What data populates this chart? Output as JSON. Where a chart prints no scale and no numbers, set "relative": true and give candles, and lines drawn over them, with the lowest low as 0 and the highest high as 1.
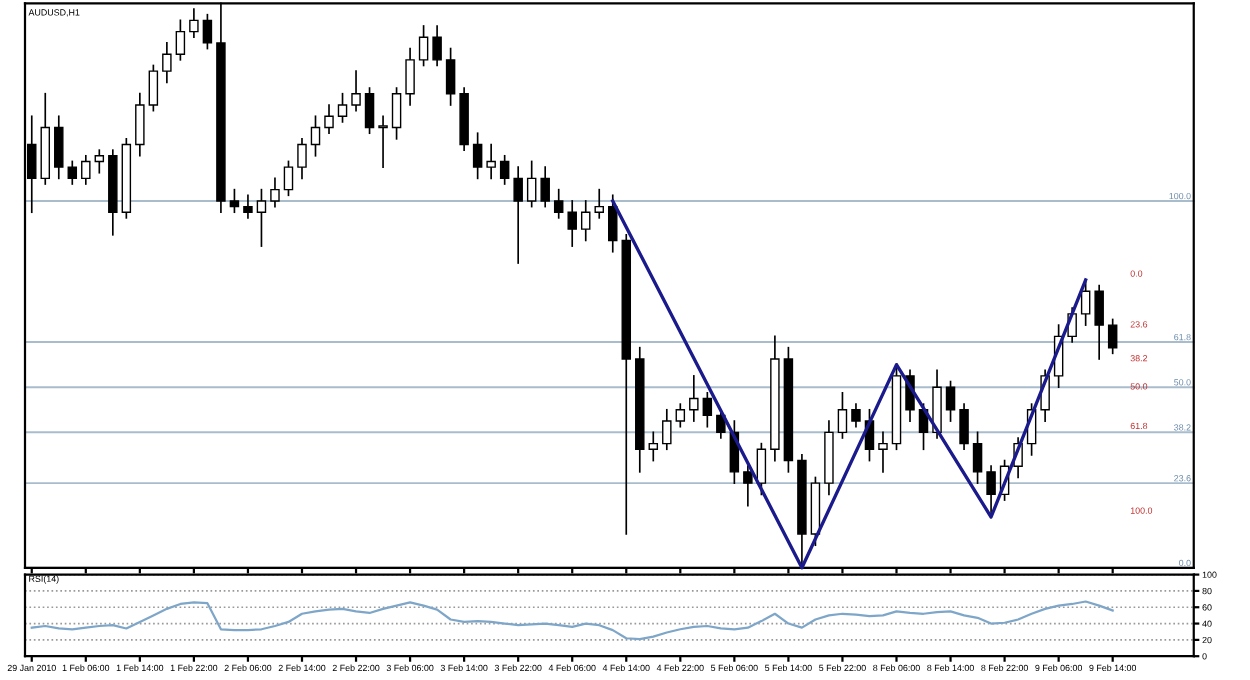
{
  "chart_data": [
    {
      "type": "candlestick",
      "title": "AUDUSD,H1",
      "relative": true,
      "grid": false,
      "categories": [
        null,
        null,
        null,
        null,
        null,
        null,
        null,
        null,
        null,
        null,
        null,
        null,
        null,
        null,
        null,
        null,
        null,
        null,
        null,
        null,
        null,
        null,
        null,
        null,
        null,
        null,
        null,
        null,
        null,
        null,
        null,
        null,
        null,
        null,
        null,
        null,
        null,
        null,
        null,
        null,
        null,
        null,
        null,
        null,
        null,
        null,
        null,
        null,
        null,
        null,
        null,
        null,
        null,
        null,
        null,
        null,
        null,
        null,
        null,
        null,
        null,
        null,
        null,
        null,
        null,
        null,
        null,
        null,
        null,
        null,
        null,
        null,
        null,
        null,
        null,
        null,
        null,
        null,
        null,
        null,
        null
      ],
      "ohlc": [
        [
          0.75,
          0.8,
          0.63,
          0.69
        ],
        [
          0.69,
          0.84,
          0.68,
          0.78
        ],
        [
          0.78,
          0.8,
          0.69,
          0.71
        ],
        [
          0.71,
          0.72,
          0.68,
          0.69
        ],
        [
          0.69,
          0.73,
          0.68,
          0.72
        ],
        [
          0.72,
          0.74,
          0.7,
          0.73
        ],
        [
          0.73,
          0.74,
          0.59,
          0.63
        ],
        [
          0.63,
          0.76,
          0.62,
          0.75
        ],
        [
          0.75,
          0.84,
          0.73,
          0.82
        ],
        [
          0.82,
          0.89,
          0.81,
          0.88
        ],
        [
          0.88,
          0.93,
          0.86,
          0.91
        ],
        [
          0.91,
          0.97,
          0.9,
          0.95
        ],
        [
          0.95,
          0.99,
          0.94,
          0.97
        ],
        [
          0.97,
          0.98,
          0.92,
          0.93
        ],
        [
          0.93,
          1.0,
          0.63,
          0.65
        ],
        [
          0.65,
          0.67,
          0.63,
          0.64
        ],
        [
          0.64,
          0.66,
          0.62,
          0.63
        ],
        [
          0.63,
          0.67,
          0.57,
          0.65
        ],
        [
          0.65,
          0.69,
          0.64,
          0.67
        ],
        [
          0.67,
          0.72,
          0.66,
          0.71
        ],
        [
          0.71,
          0.76,
          0.69,
          0.75
        ],
        [
          0.75,
          0.8,
          0.73,
          0.78
        ],
        [
          0.78,
          0.82,
          0.77,
          0.8
        ],
        [
          0.8,
          0.84,
          0.79,
          0.82
        ],
        [
          0.82,
          0.88,
          0.81,
          0.84
        ],
        [
          0.84,
          0.85,
          0.77,
          0.78
        ],
        [
          0.78,
          0.8,
          0.71,
          0.78
        ],
        [
          0.78,
          0.85,
          0.76,
          0.84
        ],
        [
          0.84,
          0.92,
          0.82,
          0.9
        ],
        [
          0.9,
          0.96,
          0.89,
          0.94
        ],
        [
          0.94,
          0.96,
          0.89,
          0.9
        ],
        [
          0.9,
          0.92,
          0.82,
          0.84
        ],
        [
          0.84,
          0.85,
          0.74,
          0.75
        ],
        [
          0.75,
          0.77,
          0.69,
          0.71
        ],
        [
          0.71,
          0.75,
          0.69,
          0.72
        ],
        [
          0.72,
          0.73,
          0.68,
          0.69
        ],
        [
          0.69,
          0.71,
          0.54,
          0.65
        ],
        [
          0.65,
          0.72,
          0.64,
          0.69
        ],
        [
          0.69,
          0.71,
          0.64,
          0.65
        ],
        [
          0.65,
          0.67,
          0.62,
          0.63
        ],
        [
          0.63,
          0.65,
          0.57,
          0.6
        ],
        [
          0.6,
          0.65,
          0.58,
          0.63
        ],
        [
          0.63,
          0.67,
          0.62,
          0.64
        ],
        [
          0.64,
          0.66,
          0.56,
          0.58
        ],
        [
          0.58,
          0.59,
          0.06,
          0.37
        ],
        [
          0.37,
          0.39,
          0.17,
          0.21
        ],
        [
          0.21,
          0.24,
          0.19,
          0.22
        ],
        [
          0.22,
          0.28,
          0.21,
          0.26
        ],
        [
          0.26,
          0.29,
          0.25,
          0.28
        ],
        [
          0.28,
          0.34,
          0.26,
          0.3
        ],
        [
          0.3,
          0.31,
          0.25,
          0.27
        ],
        [
          0.27,
          0.28,
          0.23,
          0.24
        ],
        [
          0.24,
          0.26,
          0.15,
          0.17
        ],
        [
          0.17,
          0.18,
          0.11,
          0.15
        ],
        [
          0.15,
          0.22,
          0.13,
          0.21
        ],
        [
          0.21,
          0.41,
          0.19,
          0.37
        ],
        [
          0.37,
          0.39,
          0.17,
          0.19
        ],
        [
          0.19,
          0.2,
          0.0,
          0.06
        ],
        [
          0.06,
          0.16,
          0.04,
          0.15
        ],
        [
          0.15,
          0.26,
          0.13,
          0.24
        ],
        [
          0.24,
          0.31,
          0.23,
          0.28
        ],
        [
          0.28,
          0.29,
          0.25,
          0.26
        ],
        [
          0.26,
          0.28,
          0.19,
          0.21
        ],
        [
          0.21,
          0.24,
          0.17,
          0.22
        ],
        [
          0.22,
          0.36,
          0.21,
          0.34
        ],
        [
          0.34,
          0.35,
          0.26,
          0.28
        ],
        [
          0.28,
          0.29,
          0.21,
          0.24
        ],
        [
          0.24,
          0.35,
          0.23,
          0.32
        ],
        [
          0.32,
          0.33,
          0.26,
          0.28
        ],
        [
          0.28,
          0.29,
          0.21,
          0.22
        ],
        [
          0.22,
          0.24,
          0.15,
          0.17
        ],
        [
          0.17,
          0.18,
          0.09,
          0.13
        ],
        [
          0.13,
          0.19,
          0.12,
          0.18
        ],
        [
          0.18,
          0.23,
          0.16,
          0.22
        ],
        [
          0.22,
          0.29,
          0.2,
          0.28
        ],
        [
          0.28,
          0.35,
          0.26,
          0.34
        ],
        [
          0.34,
          0.43,
          0.32,
          0.41
        ],
        [
          0.41,
          0.46,
          0.4,
          0.45
        ],
        [
          0.45,
          0.51,
          0.43,
          0.49
        ],
        [
          0.49,
          0.5,
          0.37,
          0.43
        ],
        [
          0.43,
          0.44,
          0.38,
          0.39
        ]
      ],
      "series": [
        {
          "type": "line",
          "color": "#1a1a8c",
          "values": [
            null,
            null,
            null,
            null,
            null,
            null,
            null,
            null,
            null,
            null,
            null,
            null,
            null,
            null,
            null,
            null,
            null,
            null,
            null,
            null,
            null,
            null,
            null,
            null,
            null,
            null,
            null,
            null,
            null,
            null,
            null,
            null,
            null,
            null,
            null,
            null,
            null,
            null,
            null,
            null,
            null,
            null,
            null,
            0.65,
            null,
            null,
            null,
            null,
            null,
            null,
            null,
            null,
            null,
            null,
            null,
            null,
            null,
            0.0,
            null,
            null,
            null,
            null,
            null,
            null,
            0.36,
            null,
            null,
            null,
            null,
            null,
            null,
            0.09,
            null,
            null,
            null,
            null,
            null,
            null,
            0.51,
            null,
            null
          ]
        }
      ],
      "ref_lines": [
        {
          "axis": "y",
          "value": 0.65,
          "color": "#a9bccc"
        },
        {
          "axis": "y",
          "value": 0.4,
          "color": "#a9bccc"
        },
        {
          "axis": "y",
          "value": 0.32,
          "color": "#a9bccc"
        },
        {
          "axis": "y",
          "value": 0.24,
          "color": "#a9bccc"
        },
        {
          "axis": "y",
          "value": 0.15,
          "color": "#a9bccc"
        },
        {
          "axis": "y",
          "value": 0.0,
          "color": "#a9bccc"
        }
      ],
      "annotations": [
        "100.0",
        "61.8",
        "50.0",
        "38.2",
        "23.6",
        "0.0",
        "0.0",
        "23.6",
        "38.2",
        "50.0",
        "61.8",
        "100.0"
      ]
    },
    {
      "type": "line",
      "title": "RSI(14)",
      "color": "#7ea6c8",
      "grid": "y",
      "categories": [
        "29 Jan 2010",
        null,
        null,
        null,
        "1 Feb 06:00",
        null,
        null,
        null,
        "1 Feb 14:00",
        null,
        null,
        null,
        "1 Feb 22:00",
        null,
        null,
        null,
        "2 Feb 06:00",
        null,
        null,
        null,
        "2 Feb 14:00",
        null,
        null,
        null,
        "2 Feb 22:00",
        null,
        null,
        null,
        "3 Feb 06:00",
        null,
        null,
        null,
        "3 Feb 14:00",
        null,
        null,
        null,
        "3 Feb 22:00",
        null,
        null,
        null,
        "4 Feb 06:00",
        null,
        null,
        null,
        "4 Feb 14:00",
        null,
        null,
        null,
        "4 Feb 22:00",
        null,
        null,
        null,
        "5 Feb 06:00",
        null,
        null,
        null,
        "5 Feb 14:00",
        null,
        null,
        null,
        "5 Feb 22:00",
        null,
        null,
        null,
        "8 Feb 06:00",
        null,
        null,
        null,
        "8 Feb 14:00",
        null,
        null,
        null,
        "8 Feb 22:00",
        null,
        null,
        null,
        "9 Feb 06:00",
        null,
        null,
        null,
        "9 Feb 14:00"
      ],
      "values": [
        35,
        37,
        34,
        33,
        35,
        37,
        38,
        34,
        42,
        50,
        58,
        64,
        66,
        65,
        33,
        32,
        32,
        33,
        37,
        42,
        52,
        55,
        57,
        58,
        55,
        53,
        58,
        62,
        66,
        62,
        57,
        45,
        42,
        43,
        42,
        40,
        38,
        39,
        40,
        38,
        36,
        40,
        38,
        32,
        22,
        21,
        24,
        29,
        33,
        36,
        37,
        34,
        33,
        35,
        43,
        52,
        40,
        35,
        45,
        50,
        52,
        51,
        49,
        50,
        55,
        53,
        52,
        54,
        55,
        50,
        47,
        40,
        41,
        45,
        52,
        58,
        62,
        64,
        67,
        62,
        56
      ],
      "ylim": [
        0,
        100
      ],
      "yticks": [
        0,
        20,
        40,
        60,
        80,
        100
      ]
    }
  ]
}
